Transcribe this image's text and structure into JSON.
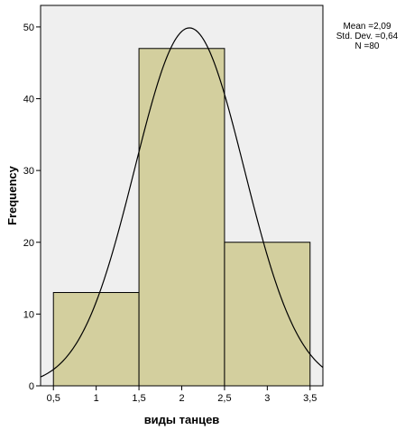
{
  "chart_data": {
    "type": "bar",
    "subtype": "histogram",
    "bins": [
      {
        "x0": 0.5,
        "x1": 1.5,
        "value": 13
      },
      {
        "x0": 1.5,
        "x1": 2.5,
        "value": 47
      },
      {
        "x0": 2.5,
        "x1": 3.5,
        "value": 20
      }
    ],
    "xlabel": "виды танцев",
    "ylabel": "Frequency",
    "xlim": [
      0.35,
      3.65
    ],
    "ylim": [
      0,
      53
    ],
    "x_ticks": [
      0.5,
      1,
      1.5,
      2,
      2.5,
      3,
      3.5
    ],
    "x_tick_labels": [
      "0,5",
      "1",
      "1,5",
      "2",
      "2,5",
      "3",
      "3,5"
    ],
    "y_ticks": [
      0,
      10,
      20,
      30,
      40,
      50
    ],
    "y_tick_labels": [
      "0",
      "10",
      "20",
      "30",
      "40",
      "50"
    ],
    "normal_curve": {
      "mean": 2.09,
      "std": 0.64,
      "n": 80,
      "bin_width": 1
    },
    "stats": {
      "mean_label": "Mean =2,09",
      "std_label": "Std. Dev. =0,64",
      "n_label": "N =80"
    },
    "colors": {
      "bar_fill": "#d3cf9e",
      "bar_stroke": "#000000",
      "plot_background": "#efefef",
      "curve": "#000000"
    },
    "grid": false
  }
}
